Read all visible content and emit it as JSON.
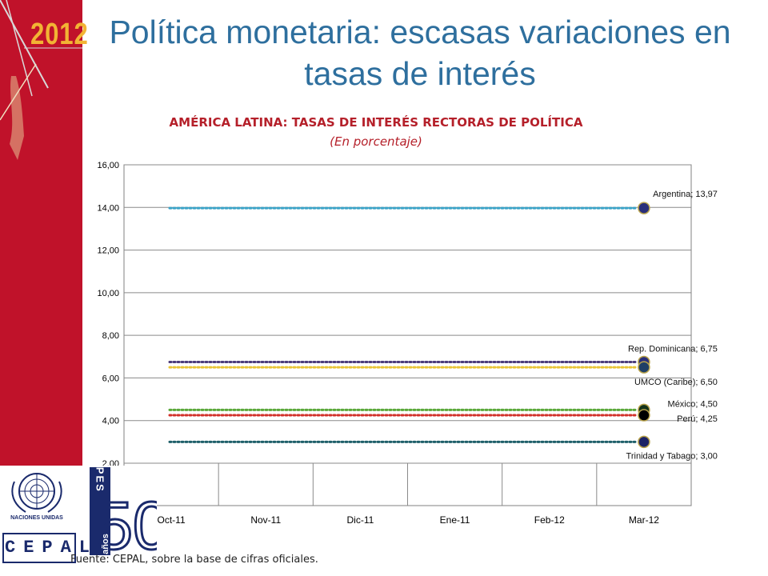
{
  "header": {
    "year": "2012",
    "title": "Política monetaria: escasas variaciones en tasas de interés"
  },
  "chart_data": {
    "type": "line",
    "title": "AMÉRICA LATINA: TASAS DE INTERÉS RECTORAS DE POLÍTICA",
    "subtitle": "(En porcentaje)",
    "categories": [
      "Oct-11",
      "Nov-11",
      "Dic-11",
      "Ene-11",
      "Feb-12",
      "Mar-12"
    ],
    "y_ticks": [
      "2,00",
      "4,00",
      "6,00",
      "8,00",
      "10,00",
      "12,00",
      "14,00",
      "16,00"
    ],
    "ylim": [
      2,
      16
    ],
    "grid": true,
    "line_style": "dotted",
    "series": [
      {
        "name": "Argentina",
        "values": [
          13.97,
          13.97,
          13.97,
          13.97,
          13.97,
          13.97
        ],
        "color": "#3aa3c8",
        "marker_color": "#2a2f7a",
        "label": "Argentina; 13,97"
      },
      {
        "name": "Rep. Dominicana",
        "values": [
          6.75,
          6.75,
          6.75,
          6.75,
          6.75,
          6.75
        ],
        "color": "#4a3b7a",
        "marker_color": "#2a2f7a",
        "label": "Rep. Dominicana; 6,75"
      },
      {
        "name": "UMCO (Caribe)",
        "values": [
          6.5,
          6.5,
          6.5,
          6.5,
          6.5,
          6.5
        ],
        "color": "#e9c436",
        "marker_color": "#1f3f66",
        "label": "UMCO (Caribe); 6,50"
      },
      {
        "name": "México",
        "values": [
          4.5,
          4.5,
          4.5,
          4.5,
          4.5,
          4.5
        ],
        "color": "#5aa83a",
        "marker_color": "#14331a",
        "label": "México; 4,50"
      },
      {
        "name": "Perú",
        "values": [
          4.25,
          4.25,
          4.25,
          4.25,
          4.25,
          4.25
        ],
        "color": "#d2312a",
        "marker_color": "#000000",
        "label": "Perú; 4,25"
      },
      {
        "name": "Trinidad y Tabago",
        "values": [
          3.0,
          3.0,
          3.0,
          3.0,
          3.0,
          3.0
        ],
        "color": "#1f5f6a",
        "marker_color": "#1c2366",
        "label": "Trinidad y Tabago; 3,00"
      }
    ]
  },
  "footer": {
    "source": "Fuente: CEPAL, sobre la base de cifras oficiales."
  },
  "logos": {
    "un_text": "NACIONES UNIDAS",
    "cepal_text": "CEPAL",
    "ilpes_text": "ILPES",
    "anniversary_number": "50",
    "anniversary_text": "años"
  }
}
